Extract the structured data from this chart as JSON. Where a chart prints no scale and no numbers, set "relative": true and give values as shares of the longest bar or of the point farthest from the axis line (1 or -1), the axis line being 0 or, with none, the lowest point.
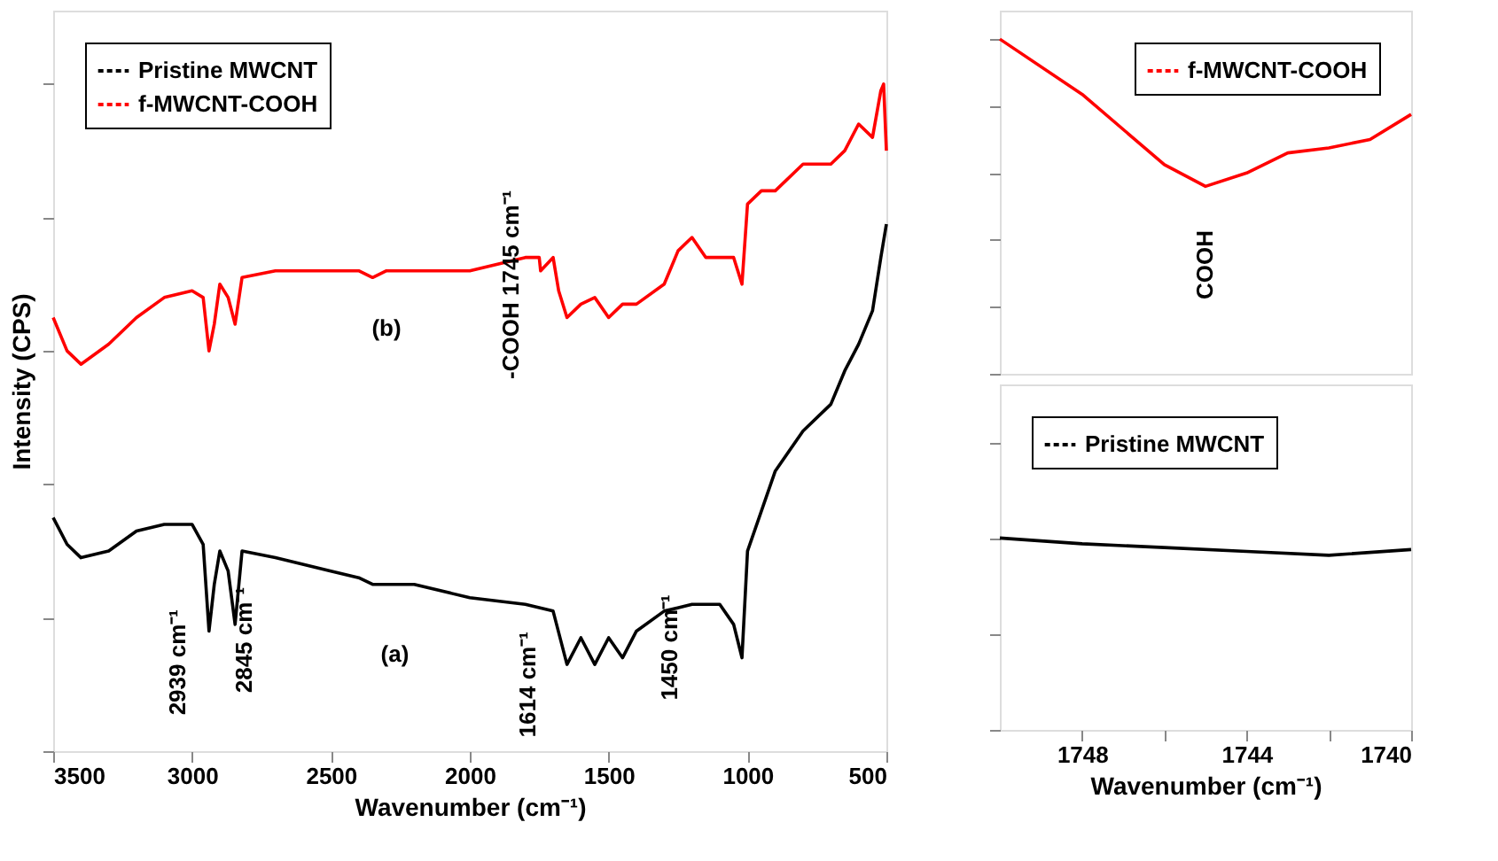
{
  "chart_data": [
    {
      "type": "line",
      "xlabel": "Wavenumber (cm⁻¹)",
      "ylabel": "Intensity (CPS)",
      "relative": true,
      "xlim": [
        3500,
        500
      ],
      "xticks": [
        3500,
        3000,
        2500,
        2000,
        1500,
        1000,
        500
      ],
      "grid": false,
      "legend": "top left",
      "marker": "none",
      "line_style": "solid",
      "series": [
        {
          "name": "Pristine MWCNT",
          "color": "#000000",
          "x": [
            3500,
            3450,
            3400,
            3300,
            3200,
            3100,
            3000,
            2960,
            2939,
            2920,
            2900,
            2870,
            2845,
            2820,
            2700,
            2500,
            2400,
            2350,
            2200,
            2000,
            1800,
            1700,
            1650,
            1600,
            1550,
            1500,
            1450,
            1400,
            1300,
            1200,
            1100,
            1050,
            1020,
            1000,
            950,
            900,
            800,
            700,
            650,
            600,
            550,
            520,
            500
          ],
          "values": [
            0.35,
            0.31,
            0.29,
            0.3,
            0.33,
            0.34,
            0.34,
            0.31,
            0.18,
            0.25,
            0.3,
            0.27,
            0.19,
            0.3,
            0.29,
            0.27,
            0.26,
            0.25,
            0.25,
            0.23,
            0.22,
            0.21,
            0.13,
            0.17,
            0.13,
            0.17,
            0.14,
            0.18,
            0.21,
            0.22,
            0.22,
            0.19,
            0.14,
            0.3,
            0.36,
            0.42,
            0.48,
            0.52,
            0.57,
            0.61,
            0.66,
            0.74,
            0.79
          ]
        },
        {
          "name": "f-MWCNT-COOH",
          "color": "#ff0000",
          "x": [
            3500,
            3450,
            3400,
            3300,
            3200,
            3100,
            3000,
            2960,
            2939,
            2920,
            2900,
            2870,
            2845,
            2820,
            2700,
            2500,
            2400,
            2350,
            2300,
            2000,
            1800,
            1750,
            1745,
            1700,
            1680,
            1650,
            1600,
            1550,
            1500,
            1450,
            1400,
            1300,
            1250,
            1200,
            1150,
            1100,
            1050,
            1020,
            1000,
            950,
            900,
            800,
            700,
            650,
            600,
            550,
            520,
            510,
            500
          ],
          "values": [
            0.65,
            0.6,
            0.58,
            0.61,
            0.65,
            0.68,
            0.69,
            0.68,
            0.6,
            0.64,
            0.7,
            0.68,
            0.64,
            0.71,
            0.72,
            0.72,
            0.72,
            0.71,
            0.72,
            0.72,
            0.74,
            0.74,
            0.72,
            0.74,
            0.69,
            0.65,
            0.67,
            0.68,
            0.65,
            0.67,
            0.67,
            0.7,
            0.75,
            0.77,
            0.74,
            0.74,
            0.74,
            0.7,
            0.82,
            0.84,
            0.84,
            0.88,
            0.88,
            0.9,
            0.94,
            0.92,
            0.99,
            1,
            0.9
          ]
        }
      ],
      "annotations": [
        "(b)",
        "(a)",
        "-COOH  1745 cm⁻¹",
        "2939 cm⁻¹",
        "2845 cm⁻¹",
        "1614 cm⁻¹",
        "1450 cm⁻¹"
      ]
    },
    {
      "type": "line",
      "relative": true,
      "xlim": [
        1750,
        1740
      ],
      "tick_labels": false,
      "grid": false,
      "legend": "top right",
      "marker": "none",
      "line_style": "solid",
      "series": [
        {
          "name": "f-MWCNT-COOH",
          "color": "#ff0000",
          "x": [
            1750,
            1748,
            1746,
            1745,
            1744,
            1743,
            1742,
            1741,
            1740
          ],
          "values": [
            1,
            0.835,
            0.625,
            0.56,
            0.6,
            0.66,
            0.675,
            0.7,
            0.775
          ]
        }
      ],
      "annotations": [
        "COOH"
      ]
    },
    {
      "type": "line",
      "relative": true,
      "xlabel": "Wavenumber (cm⁻¹)",
      "xlim": [
        1750,
        1740
      ],
      "xticks": [
        1748,
        {
          "value": 1746,
          "label": null
        },
        1744,
        {
          "value": 1742,
          "label": null
        },
        1740
      ],
      "tick_labels": "x",
      "grid": false,
      "legend": "top left",
      "marker": "none",
      "line_style": "solid",
      "series": [
        {
          "name": "Pristine MWCNT",
          "color": "#000000",
          "x": [
            1750,
            1748,
            1746,
            1744,
            1742,
            1740
          ],
          "values": [
            1,
            0.97,
            0.95,
            0.93,
            0.91,
            0.94
          ]
        }
      ]
    }
  ]
}
